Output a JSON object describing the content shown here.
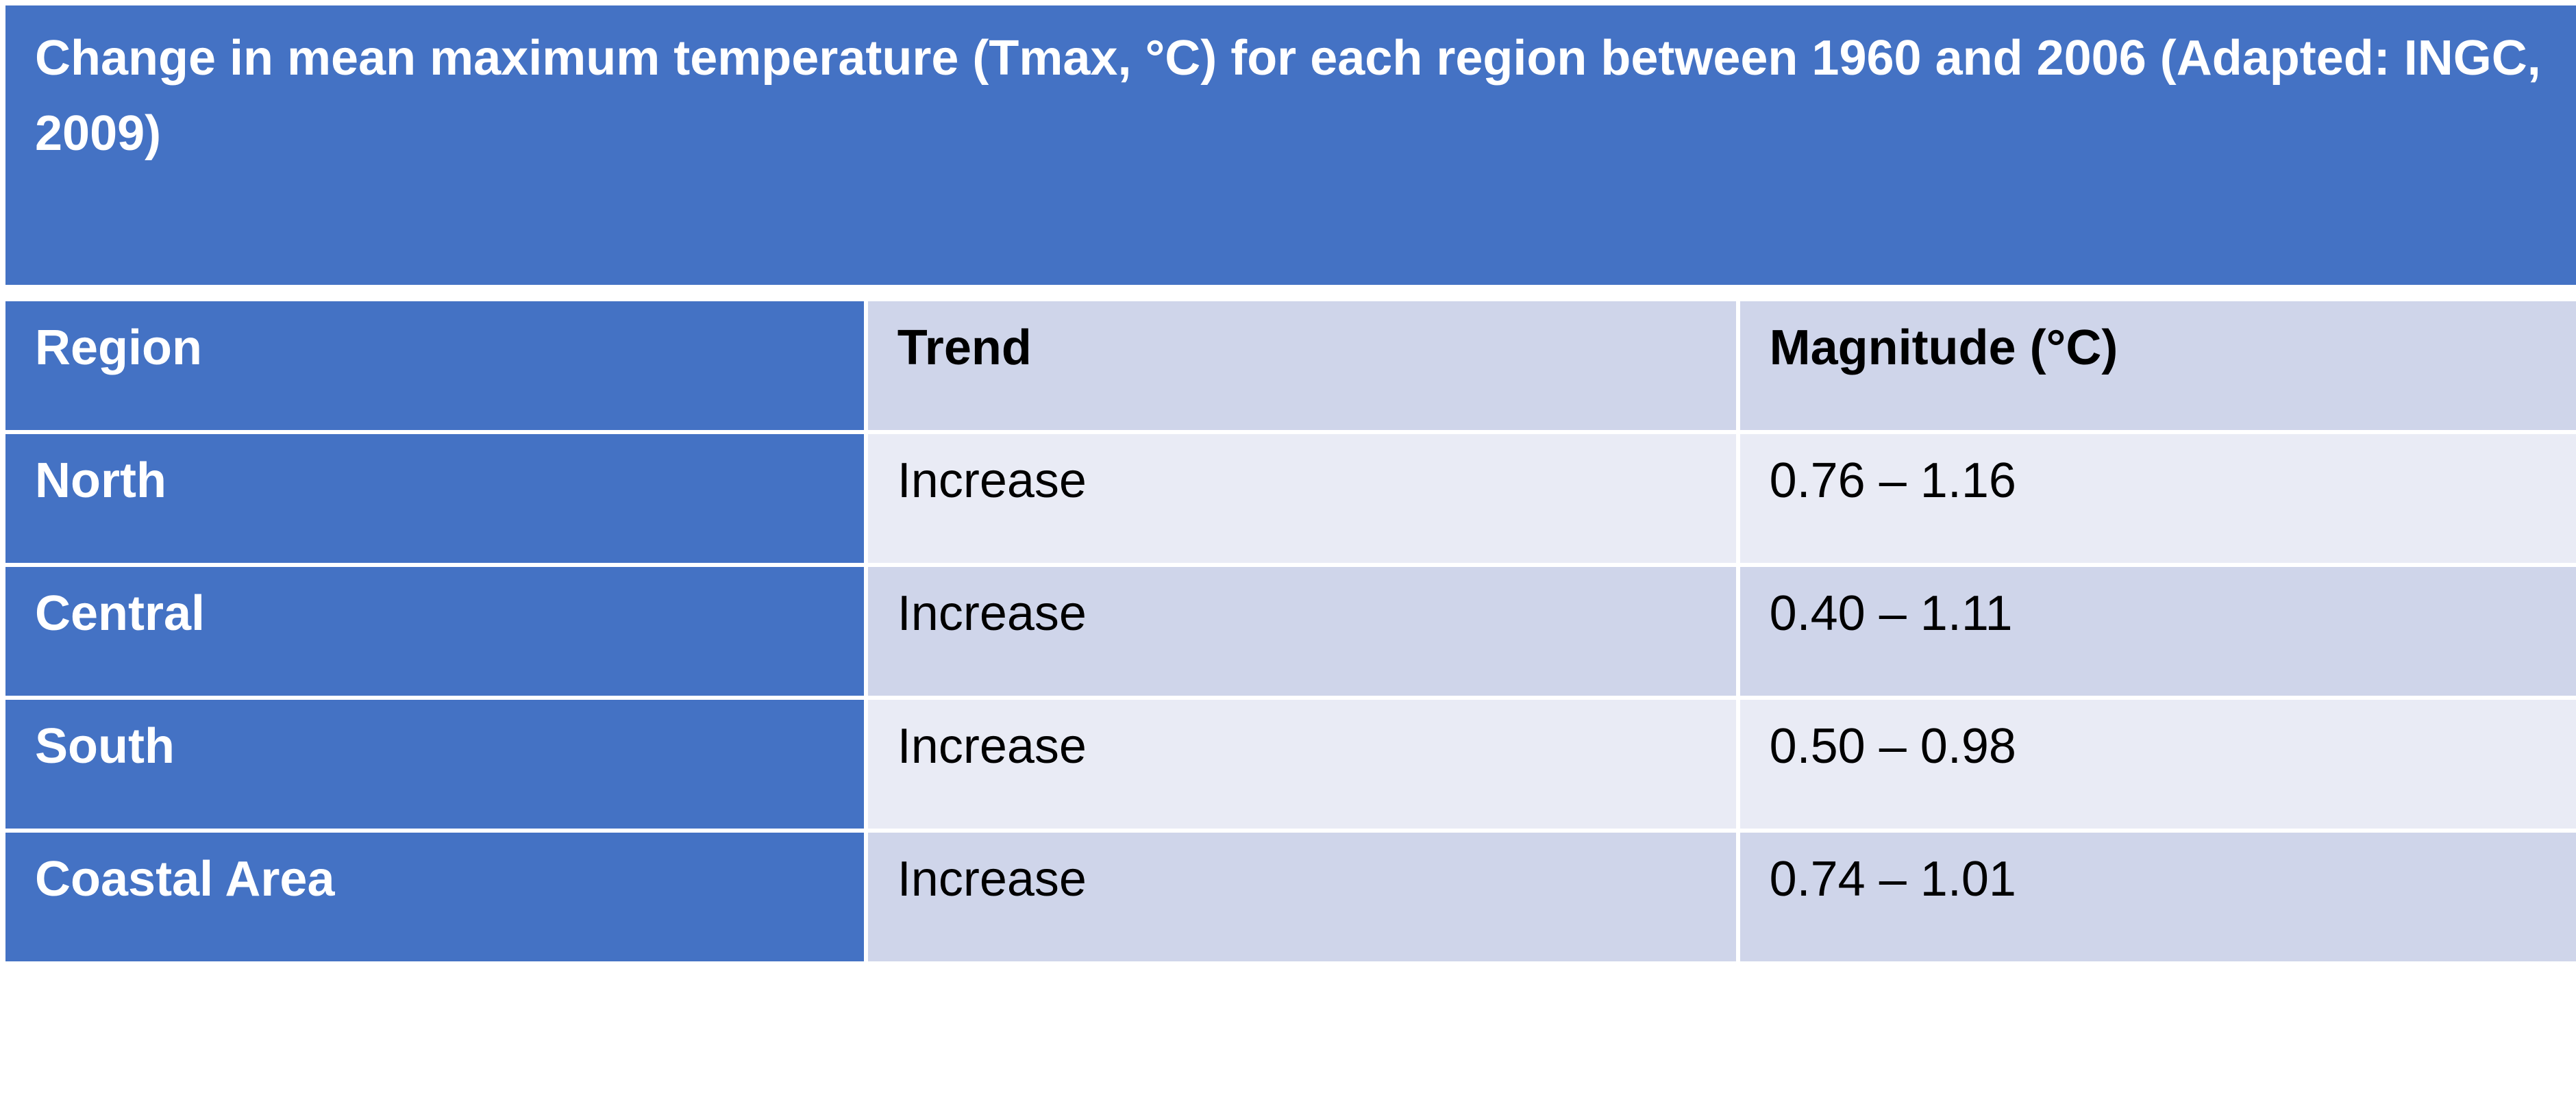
{
  "title": "Change in mean maximum temperature (Tmax, °C) for each region between 1960 and 2006 (Adapted: INGC, 2009)",
  "table": {
    "headers": {
      "region": "Region",
      "trend": "Trend",
      "magnitude": "Magnitude (°C)"
    },
    "rows": [
      {
        "region": "North",
        "trend": "Increase",
        "magnitude": "0.76 – 1.16"
      },
      {
        "region": "Central",
        "trend": "Increase",
        "magnitude": "0.40 – 1.11"
      },
      {
        "region": "South",
        "trend": "Increase",
        "magnitude": "0.50 – 0.98"
      },
      {
        "region": "Coastal Area",
        "trend": "Increase",
        "magnitude": "0.74 – 1.01"
      }
    ]
  },
  "colors": {
    "primary_blue": "#4472c4",
    "band_dark": "#cfd5ea",
    "band_light": "#e9ebf5",
    "text_light": "#ffffff",
    "text_dark": "#000000"
  }
}
